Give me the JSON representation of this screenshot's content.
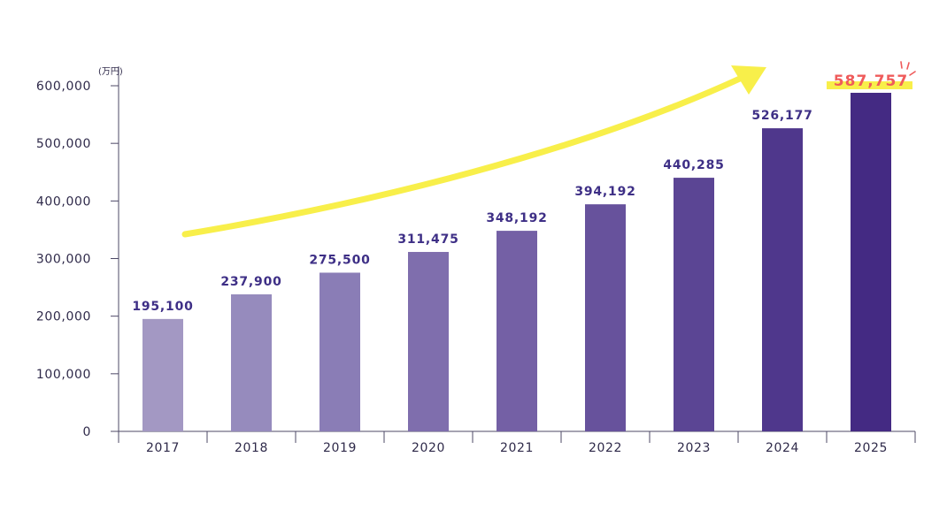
{
  "chart_data": {
    "type": "bar",
    "unit": "(万円)",
    "categories": [
      "2017",
      "2018",
      "2019",
      "2020",
      "2021",
      "2022",
      "2023",
      "2024",
      "2025"
    ],
    "values": [
      195100,
      237900,
      275500,
      311475,
      348192,
      394192,
      440285,
      526177,
      587757
    ],
    "value_labels": [
      "195,100",
      "237,900",
      "275,500",
      "311,475",
      "348,192",
      "394,192",
      "440,285",
      "526,177",
      "587,757"
    ],
    "y_ticks": [
      0,
      100000,
      200000,
      300000,
      400000,
      500000,
      600000
    ],
    "y_tick_labels": [
      "0",
      "100,000",
      "200,000",
      "300,000",
      "400,000",
      "500,000",
      "600,000"
    ],
    "ylim": [
      0,
      600000
    ],
    "grid": false,
    "bar_colors": [
      "#a398c3",
      "#968bbd",
      "#8a7db6",
      "#7f6ead",
      "#7460a5",
      "#67529c",
      "#5b4594",
      "#4f378c",
      "#442a83"
    ],
    "highlight": {
      "category": "2025",
      "label_color": "#ef5b5b",
      "underline_color": "#f8ef4a"
    },
    "trend_arrow_color": "#f8ef4a"
  }
}
